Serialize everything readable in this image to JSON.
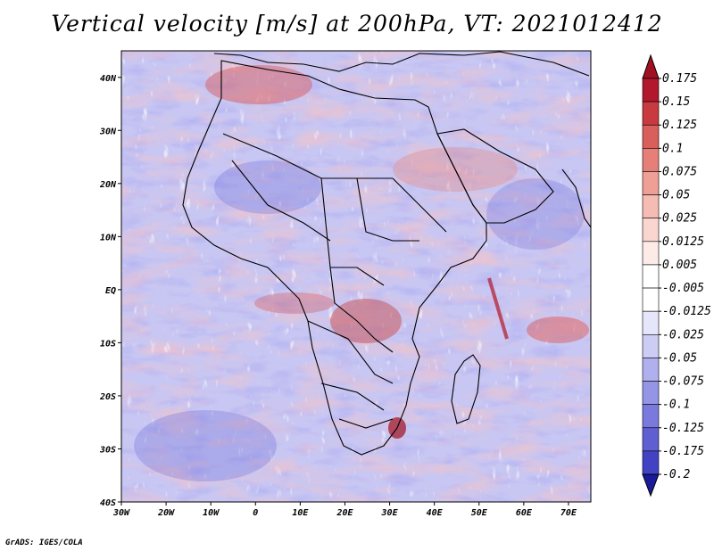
{
  "title": "Vertical velocity [m/s] at 200hPa, VT: 2021012412",
  "footer": "GrADS: IGES/COLA",
  "map": {
    "lat_labels": [
      "40N",
      "30N",
      "20N",
      "10N",
      "EQ",
      "10S",
      "20S",
      "30S",
      "40S"
    ],
    "lon_labels": [
      "30W",
      "20W",
      "10W",
      "0",
      "10E",
      "20E",
      "30E",
      "40E",
      "50E",
      "60E",
      "70E"
    ],
    "lat_range": [
      -40,
      45
    ],
    "lon_range": [
      -30,
      75
    ]
  },
  "colorbar": {
    "levels": [
      {
        "label": "0.175",
        "color": "#b2182b"
      },
      {
        "label": "0.15",
        "color": "#c93a40"
      },
      {
        "label": "0.125",
        "color": "#d95f5c"
      },
      {
        "label": "0.1",
        "color": "#e57f78"
      },
      {
        "label": "0.075",
        "color": "#eea096"
      },
      {
        "label": "0.05",
        "color": "#f4bcb3"
      },
      {
        "label": "0.025",
        "color": "#f9d6cf"
      },
      {
        "label": "0.0125",
        "color": "#fdebe7"
      },
      {
        "label": "0.005",
        "color": "#ffffff"
      },
      {
        "label": "-0.005",
        "color": "#ffffff"
      },
      {
        "label": "-0.0125",
        "color": "#e6e6fa"
      },
      {
        "label": "-0.025",
        "color": "#ccccf5"
      },
      {
        "label": "-0.05",
        "color": "#b0b0ee"
      },
      {
        "label": "-0.075",
        "color": "#9595e6"
      },
      {
        "label": "-0.1",
        "color": "#7a7ade"
      },
      {
        "label": "-0.125",
        "color": "#5f5fd2"
      },
      {
        "label": "-0.175",
        "color": "#4242c4"
      },
      {
        "label": "-0.2",
        "color": "#2a2ab0"
      }
    ],
    "top_color": "#a01020",
    "bottom_color": "#1a1a9a"
  },
  "colors": {
    "field_base": "#c8c6f2",
    "field_red": "#ef9a92",
    "field_blue": "#7e7ee0",
    "outline": "#000000"
  }
}
